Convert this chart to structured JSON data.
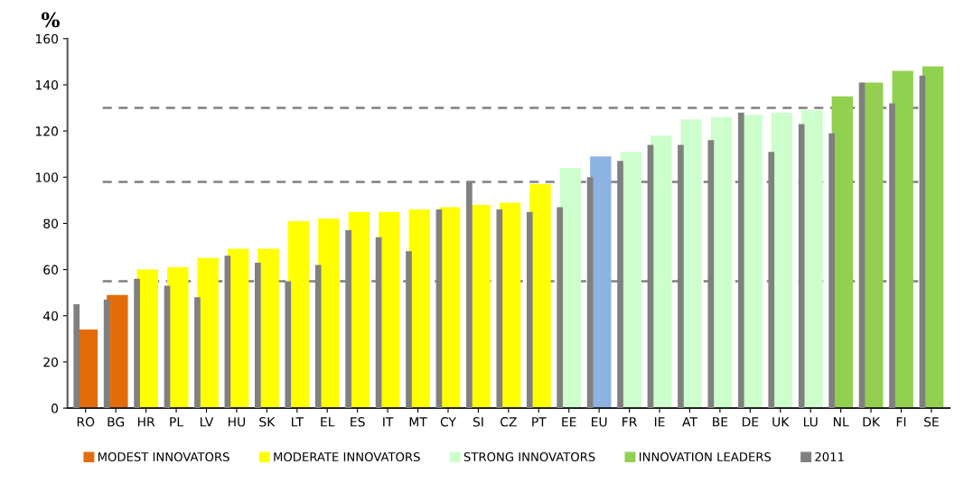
{
  "chart_data": {
    "type": "bar",
    "ylabel": "%",
    "categories": [
      "RO",
      "BG",
      "HR",
      "PL",
      "LV",
      "HU",
      "SK",
      "LT",
      "EL",
      "ES",
      "IT",
      "MT",
      "CY",
      "SI",
      "CZ",
      "PT",
      "EE",
      "EU",
      "FR",
      "IE",
      "AT",
      "BE",
      "DE",
      "UK",
      "LU",
      "NL",
      "DK",
      "FI",
      "SE"
    ],
    "series": [
      {
        "name": "MODEST INNOVATORS",
        "color": "#e36c0a",
        "values": [
          34,
          49,
          null,
          null,
          null,
          null,
          null,
          null,
          null,
          null,
          null,
          null,
          null,
          null,
          null,
          null,
          null,
          null,
          null,
          null,
          null,
          null,
          null,
          null,
          null,
          null,
          null,
          null,
          null
        ]
      },
      {
        "name": "MODERATE INNOVATORS",
        "color": "#ffff00",
        "values": [
          null,
          null,
          60,
          61,
          65,
          69,
          69,
          81,
          82,
          85,
          85,
          86,
          87,
          88,
          89,
          97,
          null,
          null,
          null,
          null,
          null,
          null,
          null,
          null,
          null,
          null,
          null,
          null,
          null
        ]
      },
      {
        "name": "STRONG INNOVATORS",
        "color": "#ccffcc",
        "values": [
          null,
          null,
          null,
          null,
          null,
          null,
          null,
          null,
          null,
          null,
          null,
          null,
          null,
          null,
          null,
          null,
          104,
          null,
          111,
          118,
          125,
          126,
          127,
          128,
          129,
          null,
          null,
          null,
          null
        ]
      },
      {
        "name": "INNOVATION LEADERS",
        "color": "#92d050",
        "values": [
          null,
          null,
          null,
          null,
          null,
          null,
          null,
          null,
          null,
          null,
          null,
          null,
          null,
          null,
          null,
          null,
          null,
          null,
          null,
          null,
          null,
          null,
          null,
          null,
          null,
          135,
          141,
          146,
          148
        ]
      },
      {
        "color": "#8db3e2",
        "values": [
          null,
          null,
          null,
          null,
          null,
          null,
          null,
          null,
          null,
          null,
          null,
          null,
          null,
          null,
          null,
          null,
          null,
          109,
          null,
          null,
          null,
          null,
          null,
          null,
          null,
          null,
          null,
          null,
          null
        ]
      },
      {
        "name": "2011",
        "color": "#808080",
        "values": [
          45,
          47,
          56,
          53,
          48,
          66,
          63,
          55,
          62,
          77,
          74,
          68,
          86,
          98,
          86,
          85,
          87,
          100,
          107,
          114,
          114,
          116,
          128,
          111,
          123,
          119,
          141,
          132,
          144
        ]
      }
    ],
    "ylim": [
      0,
      160
    ],
    "yticks": [
      0,
      20,
      40,
      60,
      80,
      100,
      120,
      140,
      160
    ],
    "ref_lines": [
      {
        "axis": "y",
        "value": 55,
        "color": "#808080",
        "line_style": "dashed"
      },
      {
        "axis": "y",
        "value": 98,
        "color": "#808080",
        "line_style": "dashed"
      },
      {
        "axis": "y",
        "value": 130,
        "color": "#808080",
        "line_style": "dashed"
      }
    ],
    "grid": false,
    "legend": "bottom"
  }
}
